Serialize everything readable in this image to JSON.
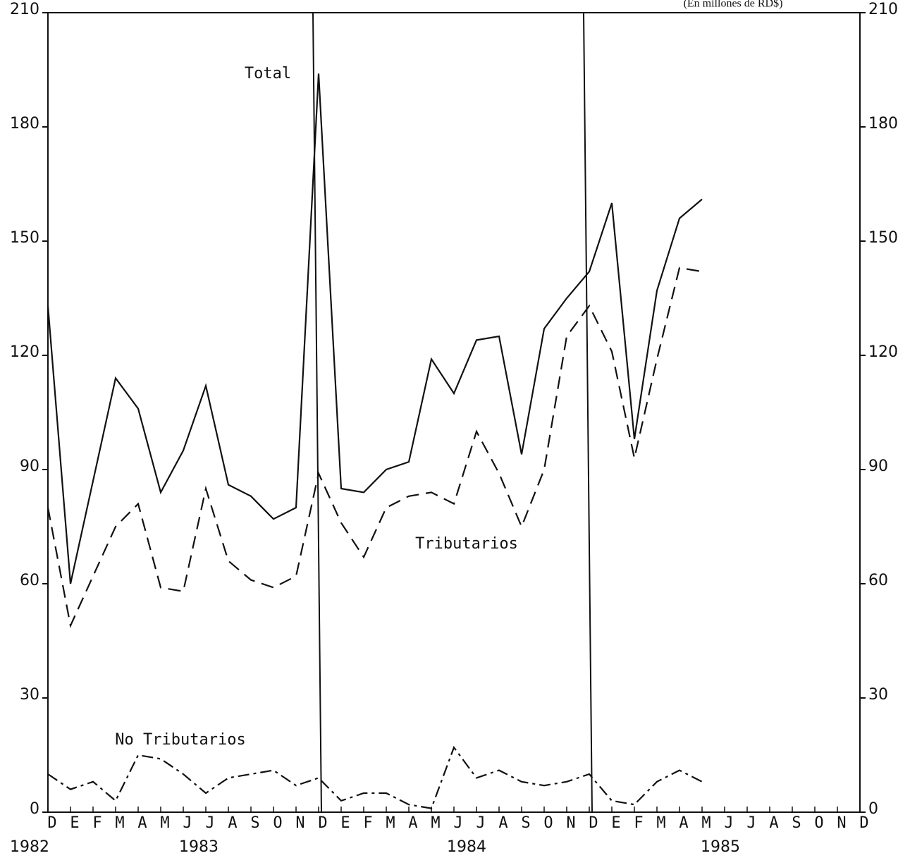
{
  "chart_data": {
    "type": "line",
    "title": "(En millones de RD$)",
    "categories": [
      "D",
      "E",
      "F",
      "M",
      "A",
      "M",
      "J",
      "J",
      "A",
      "S",
      "O",
      "N",
      "D",
      "E",
      "F",
      "M",
      "A",
      "M",
      "J",
      "J",
      "A",
      "S",
      "O",
      "N",
      "D",
      "E",
      "F",
      "M",
      "A",
      "M",
      "J",
      "J",
      "A",
      "S",
      "O",
      "N",
      "D"
    ],
    "years": [
      "1982",
      "1983",
      "1984",
      "1985"
    ],
    "series": [
      {
        "name": "Total",
        "color": "#111111",
        "style": "solid",
        "values": [
          133,
          60,
          87,
          114,
          106,
          84,
          95,
          112,
          86,
          83,
          77,
          80,
          194,
          85,
          84,
          90,
          92,
          119,
          110,
          124,
          125,
          94,
          127,
          135,
          142,
          160,
          98,
          137,
          156,
          161,
          null,
          null,
          null,
          null,
          null,
          null,
          null
        ]
      },
      {
        "name": "Tributarios",
        "color": "#111111",
        "style": "dashed",
        "values": [
          80,
          49,
          62,
          75,
          81,
          59,
          58,
          85,
          66,
          61,
          59,
          62,
          89,
          76,
          67,
          80,
          83,
          84,
          81,
          100,
          89,
          75,
          90,
          125,
          133,
          121,
          93,
          119,
          143,
          142,
          null,
          null,
          null,
          null,
          null,
          null,
          null
        ]
      },
      {
        "name": "No Tributarios",
        "color": "#111111",
        "style": "dashdot",
        "values": [
          10,
          6,
          8,
          3,
          15,
          14,
          10,
          5,
          9,
          10,
          11,
          7,
          9,
          3,
          5,
          5,
          2,
          1,
          17,
          9,
          11,
          8,
          7,
          8,
          10,
          3,
          2,
          8,
          11,
          8,
          null,
          null,
          null,
          null,
          null,
          null,
          null
        ]
      }
    ],
    "ylim": [
      0,
      210
    ],
    "yticks": [
      0,
      30,
      60,
      90,
      120,
      150,
      180,
      210
    ],
    "y2lim": [
      0,
      210
    ],
    "y2ticks": [
      0,
      30,
      60,
      90,
      120,
      150,
      180,
      210
    ],
    "grid": false
  }
}
